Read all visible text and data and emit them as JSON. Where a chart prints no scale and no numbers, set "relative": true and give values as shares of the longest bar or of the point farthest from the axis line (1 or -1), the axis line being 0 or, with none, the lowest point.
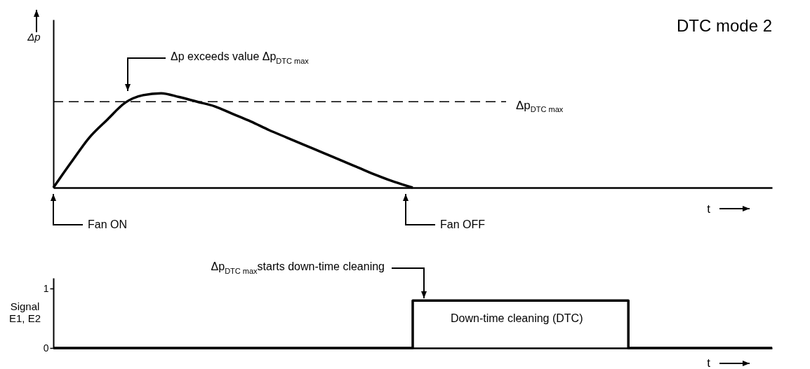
{
  "chart_data": [
    {
      "type": "line",
      "title": "DTC mode 2",
      "xlabel": "t",
      "ylabel": "Δp",
      "relative": true,
      "line_style": "solid",
      "categories": [
        null,
        null,
        null,
        null,
        null,
        null,
        null,
        null,
        null,
        null,
        null,
        null,
        null,
        null,
        null,
        null,
        null,
        null,
        null,
        null,
        null,
        null,
        null,
        null,
        null,
        null,
        null,
        null,
        null,
        null,
        null,
        null,
        null,
        null,
        null,
        null,
        null,
        null,
        null,
        null,
        null
      ],
      "series": [
        {
          "color": "#000000",
          "values": [
            0,
            0.27,
            0.53,
            0.72,
            0.9,
            0.98,
            1,
            0.96,
            0.91,
            0.86,
            0.78,
            0.7,
            0.61,
            0.53,
            0.45,
            0.37,
            0.29,
            0.21,
            0.13,
            0.06,
            0,
            null,
            null,
            null,
            null,
            null,
            null,
            null,
            null,
            null,
            null,
            null,
            null,
            null,
            null,
            null,
            null,
            null,
            null,
            null,
            null
          ]
        }
      ],
      "ref_lines": [
        {
          "axis": "y",
          "value": 0.91,
          "label": "Δp$_{DTC max}$",
          "line_style": "dashed",
          "color": "#000000"
        }
      ],
      "annotations": [
        "Δp exceeds value Δp$_{DTC max}$",
        "Fan ON",
        "Fan OFF"
      ]
    },
    {
      "type": "step",
      "xlabel": "t",
      "ylabel": "Signal E1, E2",
      "tick_labels": "y",
      "ylim": [
        0,
        1.18
      ],
      "yticks": [
        0,
        1
      ],
      "categories": [
        null,
        null,
        null,
        null,
        null,
        null,
        null,
        null,
        null,
        null,
        null,
        null,
        null,
        null,
        null,
        null,
        null,
        null,
        null,
        null,
        null,
        null,
        null,
        null,
        null,
        null,
        null,
        null,
        null,
        null,
        null,
        null,
        null,
        null,
        null,
        null,
        null,
        null,
        null,
        null,
        null
      ],
      "series": [
        {
          "color": "#000000",
          "values": [
            0,
            0,
            0,
            0,
            0,
            0,
            0,
            0,
            0,
            0,
            0,
            0,
            0,
            0,
            0,
            0,
            0,
            0,
            0,
            0,
            0.8,
            0.8,
            0.8,
            0.8,
            0.8,
            0.8,
            0.8,
            0.8,
            0.8,
            0.8,
            0.8,
            0.8,
            0,
            0,
            0,
            0,
            0,
            0,
            0,
            0,
            0
          ]
        }
      ],
      "annotations": [
        "Δp$_{DTC max}$starts down-time cleaning",
        "Down-time cleaning (DTC)"
      ]
    }
  ]
}
